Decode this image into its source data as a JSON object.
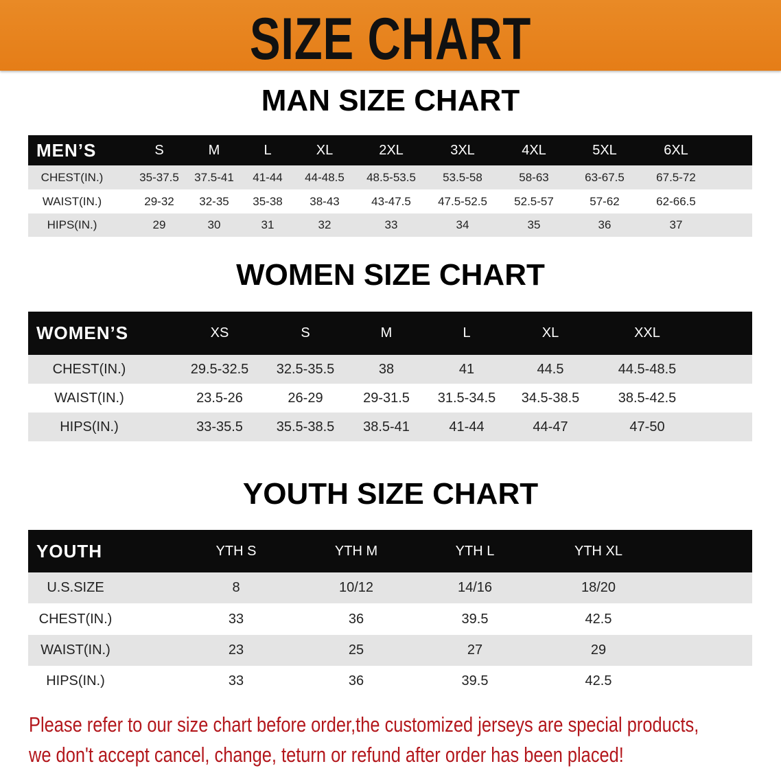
{
  "banner_title": "SIZE CHART",
  "men": {
    "title": "MAN SIZE CHART",
    "header": [
      "MEN’S",
      "S",
      "M",
      "L",
      "XL",
      "2XL",
      "3XL",
      "4XL",
      "5XL",
      "6XL"
    ],
    "rows": [
      [
        "CHEST(IN.)",
        "35-37.5",
        "37.5-41",
        "41-44",
        "44-48.5",
        "48.5-53.5",
        "53.5-58",
        "58-63",
        "63-67.5",
        "67.5-72"
      ],
      [
        "WAIST(IN.)",
        "29-32",
        "32-35",
        "35-38",
        "38-43",
        "43-47.5",
        "47.5-52.5",
        "52.5-57",
        "57-62",
        "62-66.5"
      ],
      [
        "HIPS(IN.)",
        "29",
        "30",
        "31",
        "32",
        "33",
        "34",
        "35",
        "36",
        "37"
      ]
    ]
  },
  "women": {
    "title": "WOMEN SIZE CHART",
    "header": [
      "WOMEN’S",
      "XS",
      "S",
      "M",
      "L",
      "XL",
      "XXL"
    ],
    "rows": [
      [
        "CHEST(IN.)",
        "29.5-32.5",
        "32.5-35.5",
        "38",
        "41",
        "44.5",
        "44.5-48.5"
      ],
      [
        "WAIST(IN.)",
        "23.5-26",
        "26-29",
        "29-31.5",
        "31.5-34.5",
        "34.5-38.5",
        "38.5-42.5"
      ],
      [
        "HIPS(IN.)",
        "33-35.5",
        "35.5-38.5",
        "38.5-41",
        "41-44",
        "44-47",
        "47-50"
      ]
    ]
  },
  "youth": {
    "title": "YOUTH SIZE CHART",
    "header": [
      "YOUTH",
      "YTH S",
      "YTH M",
      "YTH L",
      "YTH XL"
    ],
    "rows": [
      [
        "U.S.SIZE",
        "8",
        "10/12",
        "14/16",
        "18/20"
      ],
      [
        "CHEST(IN.)",
        "33",
        "36",
        "39.5",
        "42.5"
      ],
      [
        "WAIST(IN.)",
        "23",
        "25",
        "27",
        "29"
      ],
      [
        "HIPS(IN.)",
        "33",
        "36",
        "39.5",
        "42.5"
      ]
    ]
  },
  "footer": {
    "line1": "Please refer to our size chart before order,the customized jerseys are special products,",
    "line2": "we don't accept cancel, change, teturn or refund after order has been placed!"
  },
  "colors": {
    "banner": "#e67f1a",
    "header_row": "#0c0c0c",
    "stripe": "#e4e4e4",
    "notice_text": "#b3171c"
  }
}
